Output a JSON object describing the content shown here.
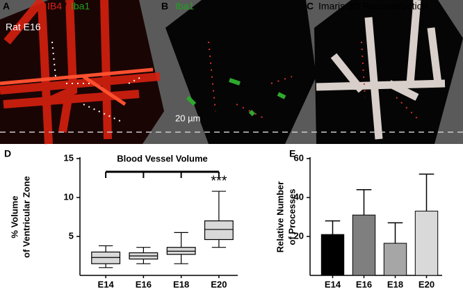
{
  "figure": {
    "panel_a": {
      "letter": "A",
      "stain_1": "IB4",
      "separator": "/",
      "stain_2": "Iba1",
      "sample": "Rat E16"
    },
    "panel_b": {
      "letter": "B",
      "stain": "Iba1",
      "scale_bar": "20 µm"
    },
    "panel_c": {
      "letter": "C",
      "title": "Imaris 3D Reconstruction"
    },
    "panel_d": {
      "letter": "D"
    },
    "panel_e": {
      "letter": "E"
    }
  },
  "chart_data": [
    {
      "type": "box",
      "title": "Blood Vessel Volume",
      "annotation": "***",
      "ylabel": [
        "% Volume",
        "of Ventricular Zone"
      ],
      "categories": [
        "E14",
        "E16",
        "E18",
        "E20"
      ],
      "boxes": [
        {
          "min": 1,
          "q1": 1.5,
          "median": 2.3,
          "q3": 3,
          "max": 3.8
        },
        {
          "min": 1.5,
          "q1": 2.1,
          "median": 2.5,
          "q3": 2.9,
          "max": 3.6
        },
        {
          "min": 1.5,
          "q1": 2.7,
          "median": 3.1,
          "q3": 3.6,
          "max": 5.5
        },
        {
          "min": 3.6,
          "q1": 4.6,
          "median": 5.9,
          "q3": 7,
          "max": 10.8
        }
      ],
      "color": "#d9d9d9",
      "ylim": [
        0,
        15
      ],
      "yticks": [
        5,
        10,
        15
      ]
    },
    {
      "type": "bar",
      "ylabel": [
        "Relative Number",
        "of Processes"
      ],
      "categories": [
        "E14",
        "E16",
        "E18",
        "E20"
      ],
      "values": [
        21,
        31,
        16.5,
        33
      ],
      "errors": [
        7,
        13,
        10.5,
        19
      ],
      "colors": [
        "#000000",
        "#7f7f7f",
        "#a6a6a6",
        "#d9d9d9"
      ],
      "ylim": [
        0,
        60
      ],
      "yticks": [
        20,
        40,
        60
      ]
    }
  ]
}
